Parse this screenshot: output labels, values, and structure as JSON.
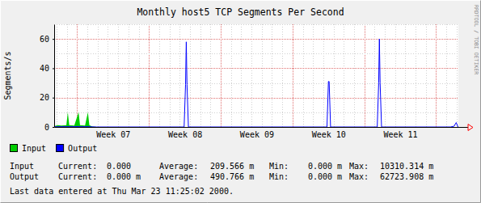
{
  "chart_data": {
    "type": "line",
    "title": "Monthly host5 TCP Segments Per Second",
    "y_label": "Segments/s",
    "watermark": "RRDTOOL / TOBI OETIKER",
    "x": [
      6.18,
      6.23,
      6.28,
      6.35,
      6.37,
      6.39,
      6.46,
      6.52,
      6.54,
      6.61,
      6.65,
      6.67,
      6.71,
      6.77,
      7.99,
      8.01,
      8.02,
      8.03,
      8.05,
      9.98,
      10.0,
      10.01,
      10.03,
      10.68,
      10.7,
      10.71,
      10.72,
      10.74,
      11.7,
      11.75,
      11.78,
      11.8,
      11.81
    ],
    "xlim": [
      6.18,
      11.81
    ],
    "xticks": [
      {
        "value": 7,
        "label": "Week 07"
      },
      {
        "value": 8,
        "label": "Week 08"
      },
      {
        "value": 9,
        "label": "Week 09"
      },
      {
        "value": 10,
        "label": "Week 10"
      },
      {
        "value": 11,
        "label": "Week 11"
      }
    ],
    "ylim": [
      0,
      70
    ],
    "yticks": [
      0,
      20,
      40,
      60
    ],
    "grid": true,
    "legend": "bottom",
    "series": [
      {
        "name": "Input",
        "color": "#00cc00",
        "type": "area",
        "values": [
          0.5,
          1.2,
          1.0,
          1.2,
          10,
          1.2,
          1.0,
          10,
          1.2,
          1.0,
          10,
          1.2,
          0.3,
          0,
          0,
          0,
          0,
          0,
          0,
          0,
          0,
          0,
          0,
          0,
          0,
          0,
          0,
          0,
          0,
          0,
          0,
          0,
          0
        ]
      },
      {
        "name": "Output",
        "color": "#0000ff",
        "type": "line",
        "values": [
          0.1,
          0.2,
          0.2,
          0.2,
          0.3,
          0.2,
          0.2,
          0.3,
          0.2,
          0.2,
          0.3,
          0.2,
          0.1,
          0,
          0,
          29,
          58,
          29,
          0,
          0,
          31,
          31,
          0,
          0,
          30,
          60,
          30,
          0,
          0,
          0.5,
          3,
          0.5,
          0
        ]
      }
    ],
    "stats": [
      [
        "Input",
        "Current:",
        "0.000",
        "Average:",
        "209.566 m",
        "Min:",
        "0.000 m",
        "Max:",
        "10310.314 m"
      ],
      [
        "Output",
        "Current:",
        "0.000 m",
        "Average:",
        "490.766 m",
        "Min:",
        "0.000 m",
        "Max:",
        "62723.908 m"
      ]
    ],
    "footer": "Last data entered at Thu Mar 23 11:25:02 2000."
  }
}
